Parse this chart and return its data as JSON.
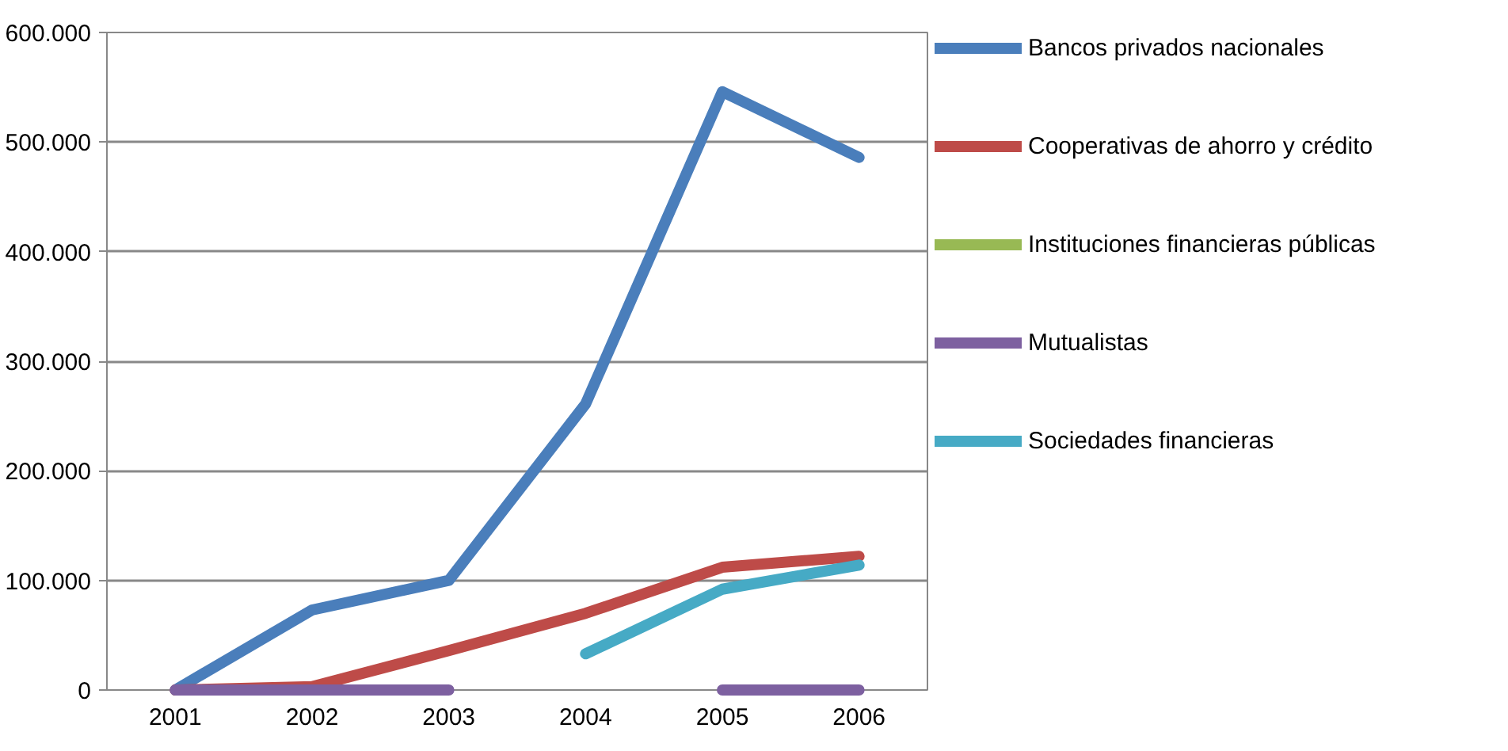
{
  "chart_data": {
    "type": "line",
    "categories": [
      "2001",
      "2002",
      "2003",
      "2004",
      "2005",
      "2006"
    ],
    "series": [
      {
        "name": "Bancos privados nacionales",
        "color": "#4a7ebb",
        "values": [
          0,
          73000,
          100000,
          261000,
          546000,
          486000
        ]
      },
      {
        "name": "Cooperativas de ahorro y crédito",
        "color": "#be4b48",
        "values": [
          0,
          3000,
          36000,
          70000,
          112000,
          122000
        ]
      },
      {
        "name": "Instituciones financieras públicas",
        "color": "#98b954",
        "values": [
          null,
          null,
          null,
          null,
          null,
          null
        ]
      },
      {
        "name": "Mutualistas",
        "color": "#7d60a0",
        "values": [
          0,
          0,
          0,
          null,
          0,
          0
        ]
      },
      {
        "name": "Sociedades financieras",
        "color": "#46aac5",
        "values": [
          null,
          null,
          null,
          33000,
          92000,
          114000
        ]
      }
    ],
    "ylim": [
      0,
      600000
    ],
    "yticks": [
      {
        "value": 0,
        "label": "0"
      },
      {
        "value": 100000,
        "label": "100.000"
      },
      {
        "value": 200000,
        "label": "200.000"
      },
      {
        "value": 300000,
        "label": "300.000"
      },
      {
        "value": 400000,
        "label": "400.000"
      },
      {
        "value": 500000,
        "label": "500.000"
      },
      {
        "value": 600000,
        "label": "600.000"
      }
    ],
    "grid": "y",
    "legend": "right",
    "marker": "none",
    "line_style": "solid"
  }
}
